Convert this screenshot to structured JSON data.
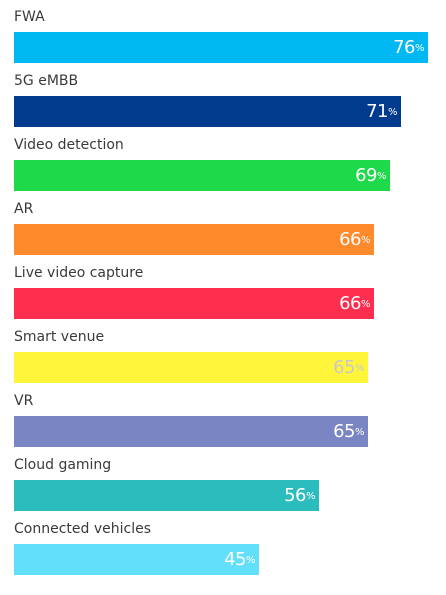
{
  "chart_data": {
    "type": "bar",
    "orientation": "horizontal",
    "xlim": [
      0,
      80
    ],
    "categories": [
      "FWA",
      "5G eMBB",
      "Video detection",
      "AR",
      "Live video capture",
      "Smart venue",
      "VR",
      "Cloud gaming",
      "Connected vehicles"
    ],
    "values": [
      76,
      71,
      69,
      66,
      66,
      65,
      65,
      56,
      45
    ],
    "value_suffix": "%",
    "colors": [
      "#00b9f2",
      "#003b8e",
      "#1ed94a",
      "#ff8a2b",
      "#ff2e4f",
      "#fff53a",
      "#7a85c4",
      "#2bbcbe",
      "#62e0fb"
    ],
    "value_label_colors": [
      "#ffffff",
      "#ffffff",
      "#ffffff",
      "#ffffff",
      "#ffffff",
      "#c9c9c9",
      "#ffffff",
      "#ffffff",
      "#ffffff"
    ]
  }
}
